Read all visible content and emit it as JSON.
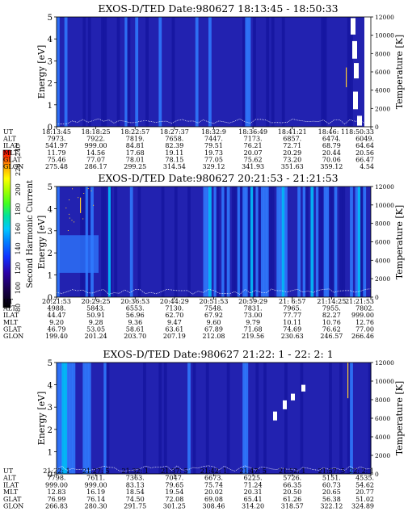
{
  "figure": {
    "colorbar": {
      "label": "Second Harmonic Current",
      "ticks": [
        "80",
        "100",
        "120",
        "140",
        "160",
        "180",
        "200",
        "220",
        "240"
      ],
      "colors": [
        "#000000",
        "#1a0050",
        "#2b00a6",
        "#1030ff",
        "#0080ff",
        "#00c8ff",
        "#00e0a0",
        "#40ff20",
        "#a0ff00",
        "#ffff00",
        "#ffa000",
        "#ff3000",
        "#ff0000"
      ]
    },
    "colors": {
      "background": "#2222b0",
      "stripe_light": "#2f7bff",
      "stripe_cyan": "#00c8ff",
      "stripe_dark": "#1515a0",
      "temperature_line": "#ffffff",
      "data_gap": "#ffffff",
      "spike": "#ffcc33"
    }
  },
  "chart_data": [
    {
      "type": "heatmap",
      "title": "EXOS-D/TED   Date:980627   18:13:45 - 18:50:33",
      "ylabel": "Energy [eV]",
      "ylabel_right": "Temperature [K]",
      "ylim": [
        0,
        5
      ],
      "ylim_right": [
        0,
        12000
      ],
      "yticks": [
        "0",
        "1",
        "2",
        "3",
        "4",
        "5"
      ],
      "yticks_right": [
        "0",
        "2000",
        "4000",
        "6000",
        "8000",
        "10000",
        "12000"
      ],
      "row_labels": [
        "UT",
        "ALT",
        "ILAT",
        "MLT",
        "GLAT",
        "GLON"
      ],
      "columns": [
        [
          "18:13:45",
          "7973.",
          "541.97",
          "11.79",
          "75.46",
          "275.48"
        ],
        [
          "18:18:25",
          "7922.",
          "999.00",
          "14.56",
          "77.07",
          "286.17"
        ],
        [
          "18:22:57",
          "7819.",
          "84.81",
          "17.68",
          "78.01",
          "299.25"
        ],
        [
          "18:27:37",
          "7658.",
          "82.39",
          "19.11",
          "78.15",
          "314.54"
        ],
        [
          "18:32:9",
          "7447.",
          "79.51",
          "19.73",
          "77.05",
          "329.12"
        ],
        [
          "18:36:49",
          "7173.",
          "76.21",
          "20.07",
          "75.62",
          "341.93"
        ],
        [
          "18:41:21",
          "6857.",
          "72.71",
          "20.29",
          "73.20",
          "351.63"
        ],
        [
          "18:46: 1",
          "6474.",
          "68.79",
          "20.44",
          "70.06",
          "359.12"
        ],
        [
          "18:50:33",
          "6049.",
          "64.64",
          "20.56",
          "66.47",
          "4.54"
        ]
      ]
    },
    {
      "type": "heatmap",
      "title": "EXOS-D/TED   Date:980627   20:21:53 - 21:21:53",
      "ylabel": "Energy [eV]",
      "ylabel_right": "Temperature [K]",
      "ylim": [
        0,
        5
      ],
      "ylim_right": [
        0,
        12000
      ],
      "yticks": [
        "0",
        "1",
        "2",
        "3",
        "4",
        "5"
      ],
      "yticks_right": [
        "0",
        "2000",
        "4000",
        "6000",
        "8000",
        "10000",
        "12000"
      ],
      "row_labels": [
        "UT",
        "ALT",
        "ILAT",
        "MLT",
        "GLAT",
        "GLON"
      ],
      "columns": [
        [
          "20:21:53",
          "4988.",
          "44.47",
          "9.20",
          "46.79",
          "199.40"
        ],
        [
          "20:29:25",
          "5843.",
          "50.91",
          "9.28",
          "53.05",
          "201.24"
        ],
        [
          "20:36:53",
          "6553.",
          "56.96",
          "9.36",
          "58.61",
          "203.70"
        ],
        [
          "20:44:29",
          "7130.",
          "62.70",
          "9.47",
          "63.61",
          "207.19"
        ],
        [
          "20:51:53",
          "7548.",
          "67.92",
          "9.60",
          "67.89",
          "212.08"
        ],
        [
          "20:59:29",
          "7831.",
          "73.00",
          "9.79",
          "71.68",
          "219.56"
        ],
        [
          "21: 6:57",
          "7965.",
          "77.77",
          "10.11",
          "74.69",
          "230.63"
        ],
        [
          "21:14:25",
          "7955.",
          "82.27",
          "10.76",
          "76.62",
          "246.57"
        ],
        [
          "21:21:53",
          "7802.",
          "999.00",
          "12.76",
          "77.00",
          "266.46"
        ]
      ]
    },
    {
      "type": "heatmap",
      "title": "EXOS-D/TED   Date:980627   21:22: 1 - 22: 2: 1",
      "ylabel": "Energy [eV]",
      "ylabel_right": "Temperature [K]",
      "ylim": [
        0,
        5
      ],
      "ylim_right": [
        0,
        12000
      ],
      "yticks": [
        "0",
        "1",
        "2",
        "3",
        "4",
        "5"
      ],
      "yticks_right": [
        "0",
        "2000",
        "4000",
        "6000",
        "8000",
        "10000",
        "12000"
      ],
      "row_labels": [
        "UT",
        "ALT",
        "ILAT",
        "MLT",
        "GLAT",
        "GLON"
      ],
      "columns": [
        [
          "21:22: 1",
          "7798.",
          "999.00",
          "12.83",
          "76.99",
          "266.83"
        ],
        [
          "21:27: 5",
          "7611.",
          "999.00",
          "16.19",
          "76.14",
          "280.30"
        ],
        [
          "21:32: 1",
          "7363.",
          "83.13",
          "18.54",
          "74.50",
          "291.75"
        ],
        [
          "21:37: 5",
          "7047.",
          "79.65",
          "19.54",
          "72.08",
          "301.25"
        ],
        [
          "21:42: 1",
          "6673.",
          "75.74",
          "20.02",
          "69.08",
          "308.46"
        ],
        [
          "21:47: 5",
          "6225.",
          "71.24",
          "20.31",
          "65.41",
          "314.20"
        ],
        [
          "21:52: 1",
          "5726.",
          "66.35",
          "20.50",
          "61.26",
          "318.57"
        ],
        [
          "21:57: 5",
          "5151.",
          "60.73",
          "20.65",
          "56.38",
          "322.12"
        ],
        [
          "22: 2: 1",
          "4535.",
          "54.62",
          "20.77",
          "51.02",
          "324.89"
        ]
      ]
    }
  ]
}
